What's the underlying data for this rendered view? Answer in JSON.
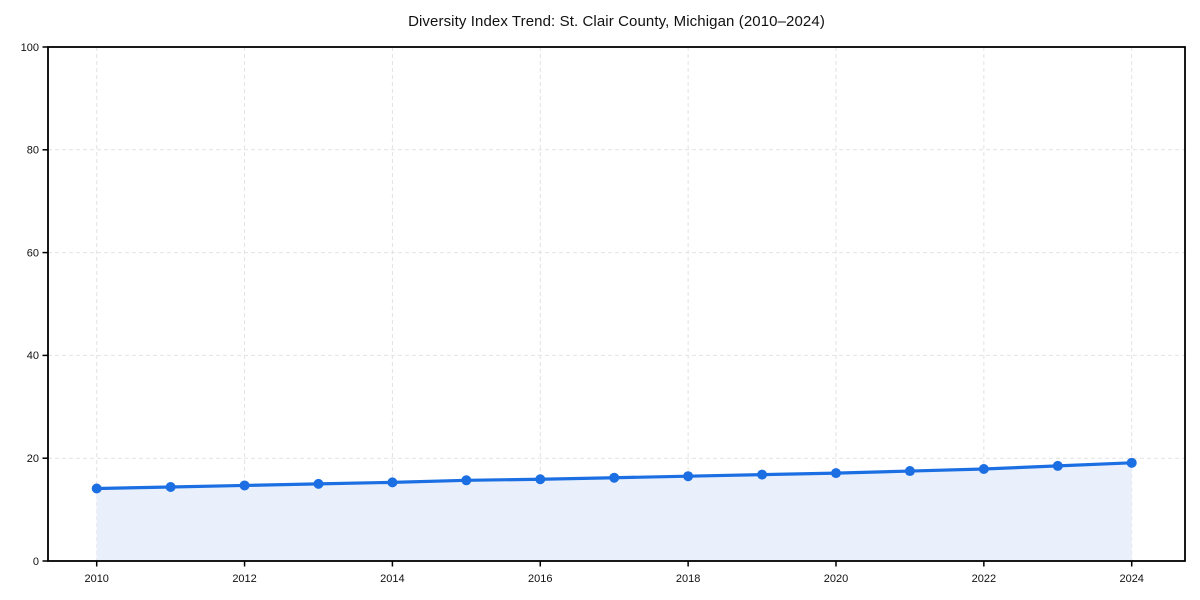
{
  "chart_data": {
    "type": "area",
    "title": "Diversity Index Trend: St. Clair County, Michigan (2010–2024)",
    "xlabel": "",
    "ylabel": "",
    "x": [
      2010,
      2011,
      2012,
      2013,
      2014,
      2015,
      2016,
      2017,
      2018,
      2019,
      2020,
      2021,
      2022,
      2023,
      2024
    ],
    "values": [
      14.1,
      14.4,
      14.7,
      15.0,
      15.3,
      15.7,
      15.9,
      16.2,
      16.5,
      16.8,
      17.1,
      17.5,
      17.9,
      18.5,
      19.1
    ],
    "xlim": [
      2010,
      2024
    ],
    "ylim": [
      0,
      100
    ],
    "xticks": [
      2010,
      2012,
      2014,
      2016,
      2018,
      2020,
      2022,
      2024
    ],
    "yticks": [
      0,
      20,
      40,
      60,
      80,
      100
    ],
    "grid": true,
    "legend": "none",
    "colors": {
      "line": "#1c6fe2",
      "marker": "#1c6fe2",
      "fill": "#e9f0fc",
      "grid": "#e2e2e2",
      "axis": "#000000",
      "tick_text": "#111111"
    }
  }
}
